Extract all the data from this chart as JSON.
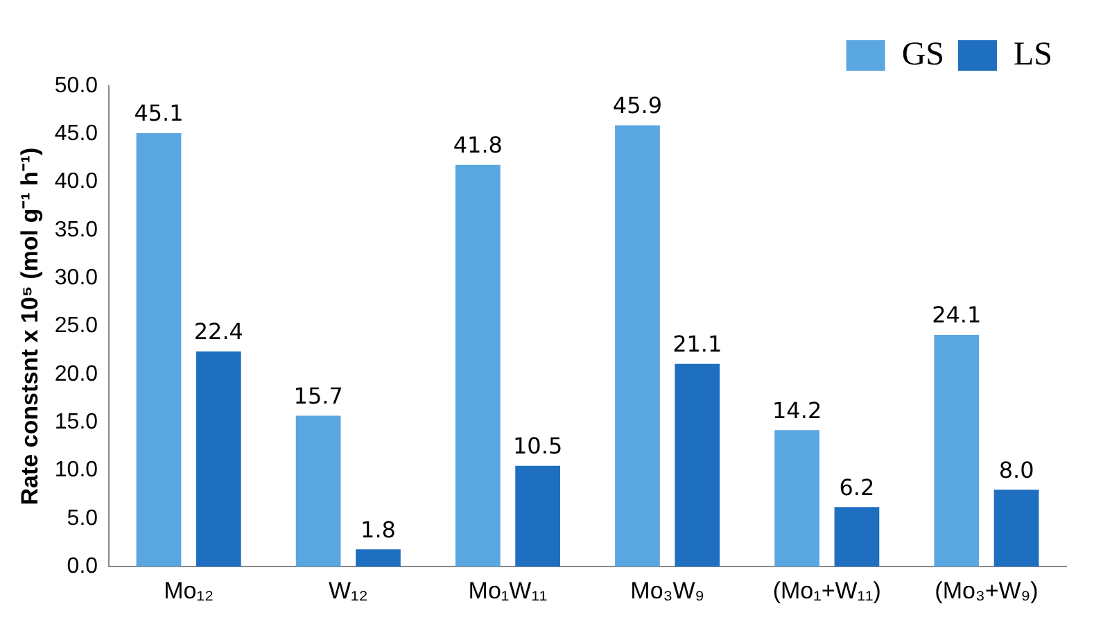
{
  "chart_data": {
    "type": "bar",
    "ylabel": "Rate constsnt x 10⁵ (mol g⁻¹ h⁻¹)",
    "categories": [
      "Mo₁₂",
      "W₁₂",
      "Mo₁W₁₁",
      "Mo₃W₉",
      "(Mo₁+W₁₁)",
      "(Mo₃+W₉)"
    ],
    "series": [
      {
        "name": "GS",
        "color": "#5aa6e0",
        "values": [
          45.1,
          15.7,
          41.8,
          45.9,
          14.2,
          24.1
        ],
        "value_labels": [
          "45.1",
          "15.7",
          "41.8",
          "45.9",
          "14.2",
          "24.1"
        ]
      },
      {
        "name": "LS",
        "color": "#1f6fc0",
        "values": [
          22.4,
          1.8,
          10.5,
          21.1,
          6.2,
          8.0
        ],
        "value_labels": [
          "22.4",
          "1.8",
          "10.5",
          "21.1",
          "6.2",
          "8.0"
        ]
      }
    ],
    "ylim": [
      0,
      50
    ],
    "yticks": [
      {
        "value": 0,
        "label": "0.0"
      },
      {
        "value": 5,
        "label": "5.0"
      },
      {
        "value": 10,
        "label": "10.0"
      },
      {
        "value": 15,
        "label": "15.0"
      },
      {
        "value": 20,
        "label": "20.0"
      },
      {
        "value": 25,
        "label": "25.0"
      },
      {
        "value": 30,
        "label": "30.0"
      },
      {
        "value": 35,
        "label": "35.0"
      },
      {
        "value": 40,
        "label": "40.0"
      },
      {
        "value": 45,
        "label": "45.0"
      },
      {
        "value": 50,
        "label": "50.0"
      }
    ],
    "grid": false,
    "legend": "top right"
  }
}
